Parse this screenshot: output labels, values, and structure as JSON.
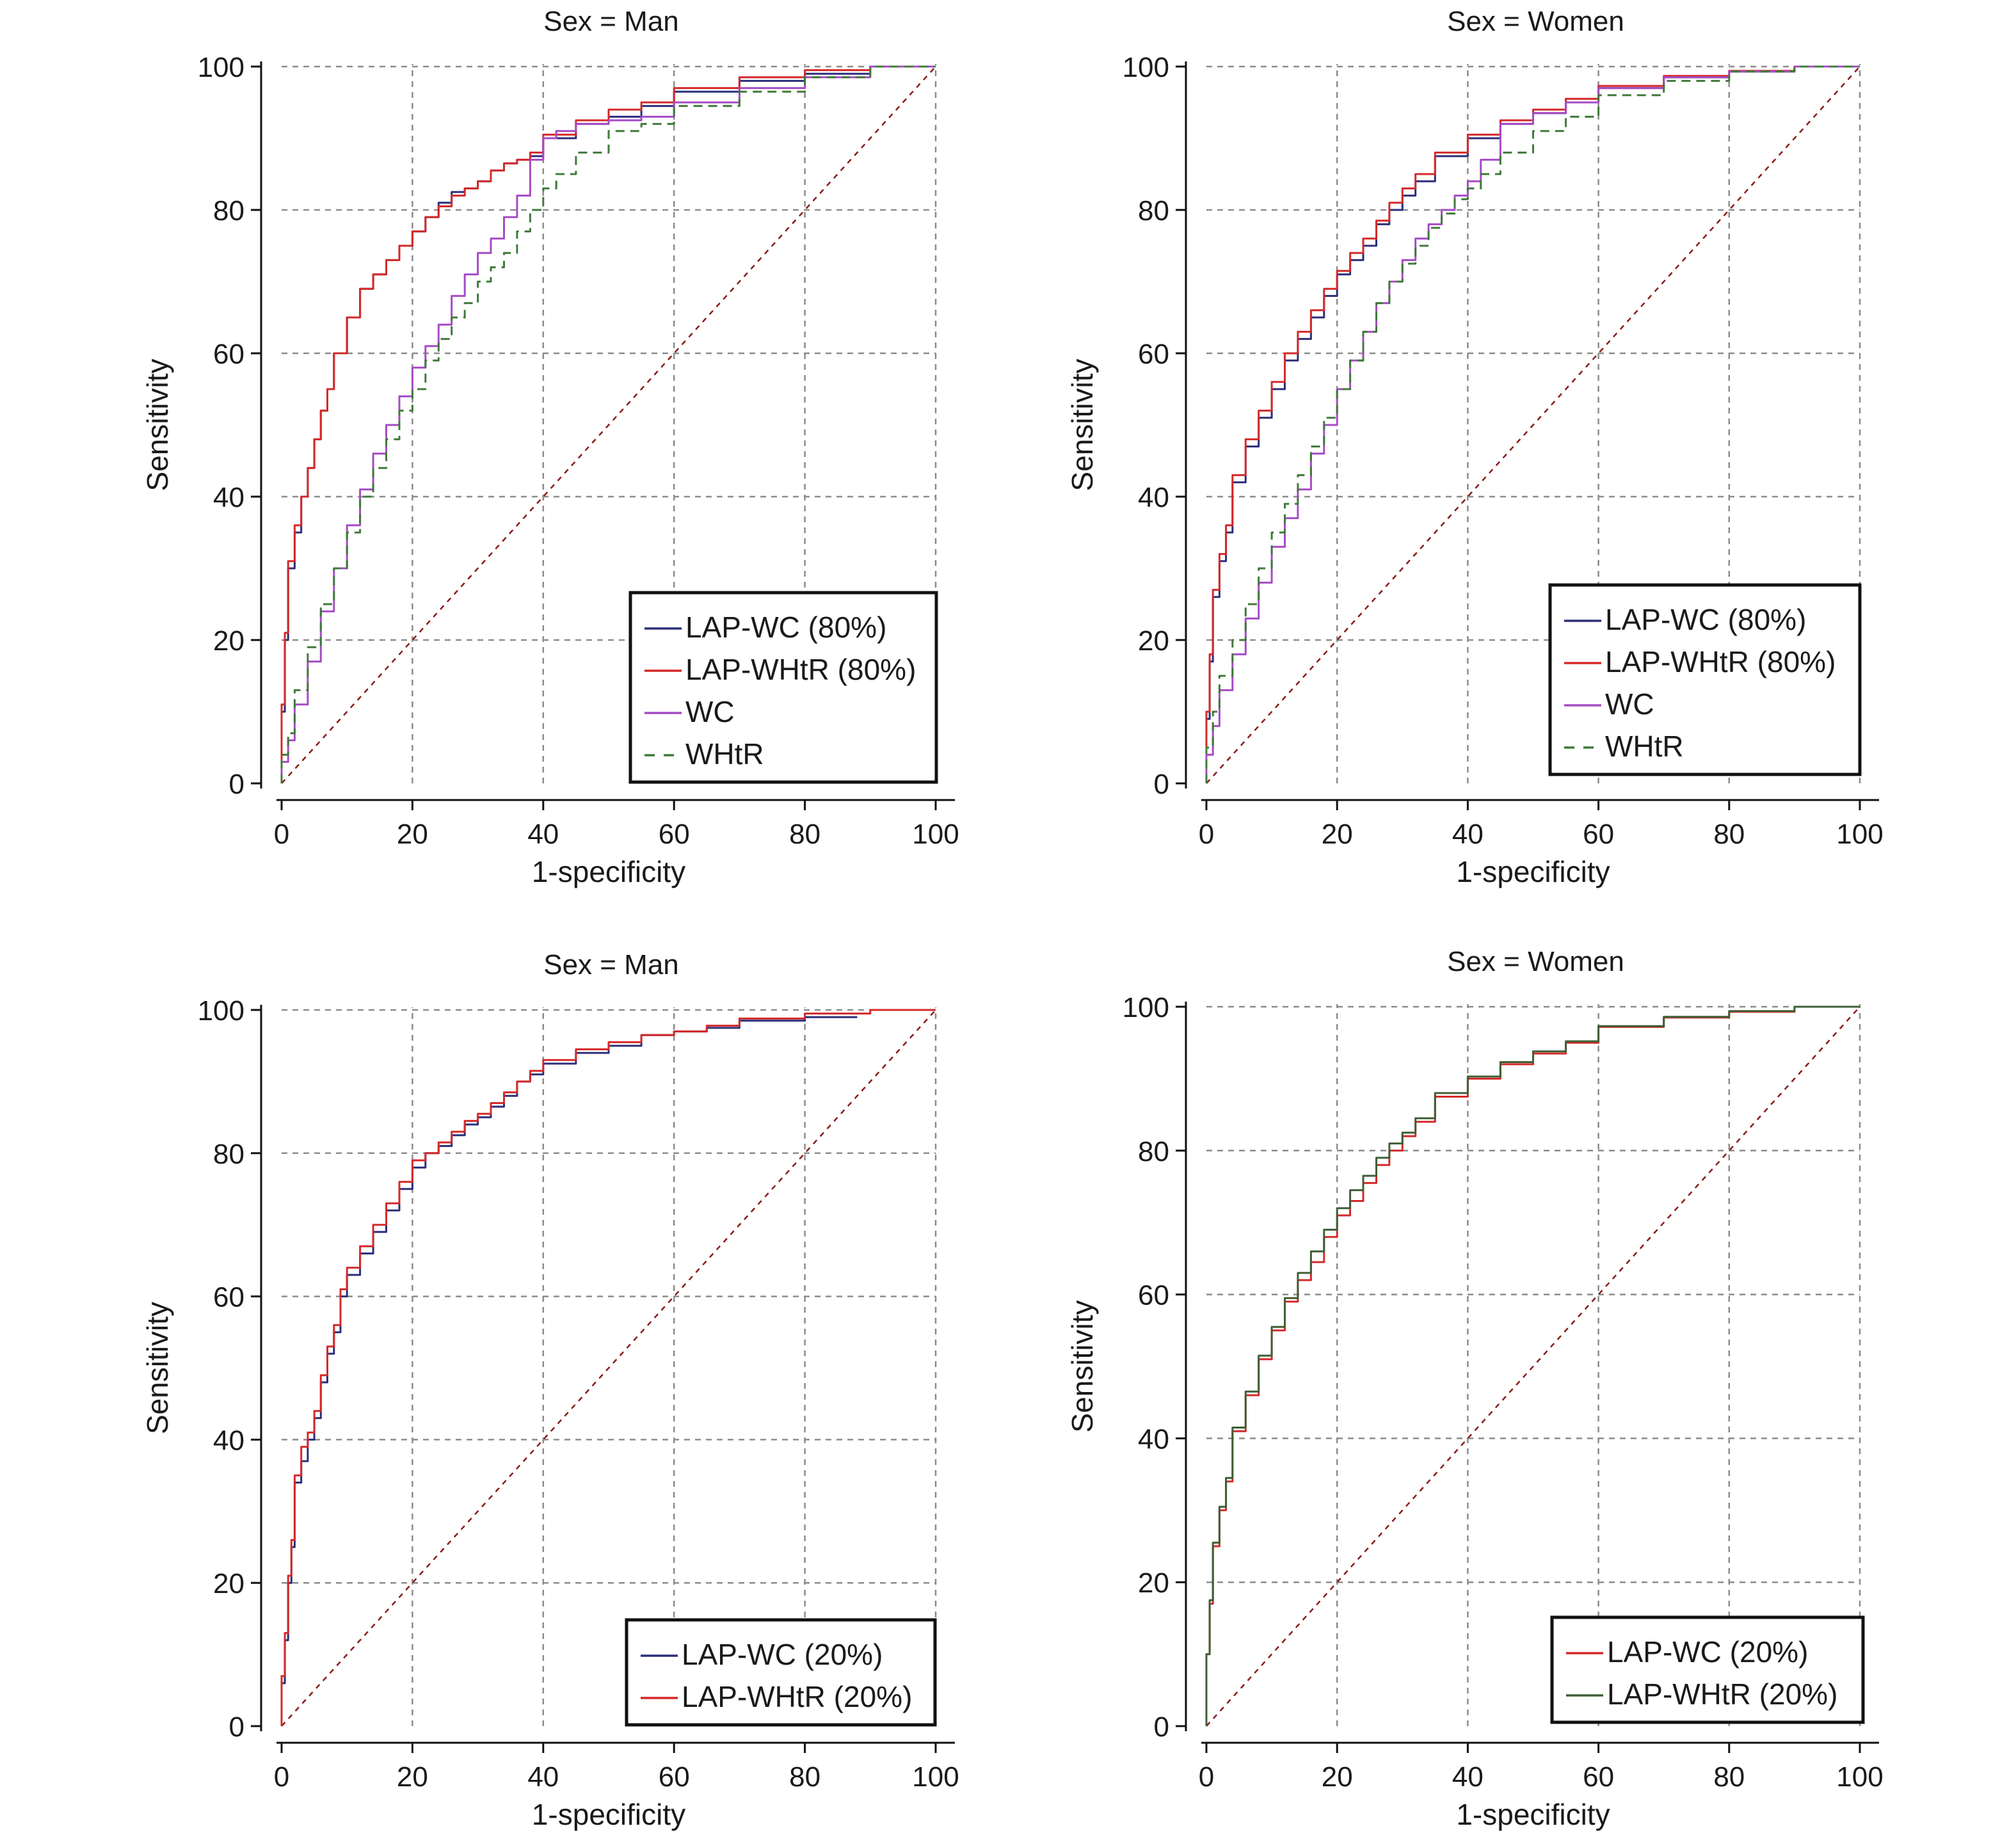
{
  "colors": {
    "grid": "#8c8c8c",
    "axis": "#111111",
    "reference": "#8b1a1a",
    "legend_border": "#111111"
  },
  "chart_data": [
    {
      "type": "line",
      "title": "Sex = Man",
      "xlabel": "1-specificity",
      "ylabel": "Sensitivity",
      "xlim": [
        0,
        100
      ],
      "ylim": [
        0,
        100
      ],
      "xticks": [
        "0",
        "20",
        "40",
        "60",
        "80",
        "100"
      ],
      "yticks": [
        "0",
        "20",
        "40",
        "60",
        "80",
        "100"
      ],
      "grid": true,
      "legend_position": "bottom-right",
      "reference_line": {
        "x": [
          0,
          100
        ],
        "y": [
          0,
          100
        ],
        "style": "dashed"
      },
      "series": [
        {
          "name": "LAP-WC (80%)",
          "color": "#2b2f7a",
          "style": "solid",
          "x": [
            0,
            0.5,
            1,
            2,
            3,
            4,
            5,
            6,
            7,
            8,
            10,
            12,
            14,
            16,
            18,
            20,
            22,
            24,
            26,
            28,
            30,
            32,
            34,
            36,
            38,
            40,
            45,
            50,
            55,
            60,
            70,
            80,
            90,
            100
          ],
          "y": [
            0,
            10,
            20,
            30,
            35,
            40,
            44,
            48,
            52,
            55,
            60,
            65,
            69,
            71,
            73,
            75,
            77,
            79,
            81,
            82.5,
            83,
            84,
            85.5,
            86.5,
            87,
            87.5,
            90,
            92,
            93,
            94.5,
            96.5,
            98,
            99,
            100
          ]
        },
        {
          "name": "LAP-WHtR (80%)",
          "color": "#d42a2a",
          "style": "solid",
          "x": [
            0,
            0.5,
            1,
            2,
            3,
            4,
            5,
            6,
            7,
            8,
            10,
            12,
            14,
            16,
            18,
            20,
            22,
            24,
            26,
            28,
            30,
            32,
            34,
            36,
            38,
            40,
            45,
            50,
            55,
            60,
            70,
            80,
            90,
            100
          ],
          "y": [
            0,
            11,
            21,
            31,
            36,
            40,
            44,
            48,
            52,
            55,
            60,
            65,
            69,
            71,
            73,
            75,
            77,
            79,
            80.5,
            82,
            83,
            84,
            85.5,
            86.5,
            87,
            88,
            90.5,
            92.5,
            94,
            95,
            97,
            98.5,
            99.5,
            100
          ]
        },
        {
          "name": "WC",
          "color": "#a64bc4",
          "style": "solid",
          "x": [
            0,
            1,
            2,
            4,
            6,
            8,
            10,
            12,
            14,
            16,
            18,
            20,
            22,
            24,
            26,
            28,
            30,
            32,
            34,
            36,
            38,
            40,
            42,
            45,
            50,
            55,
            60,
            70,
            80,
            90,
            100
          ],
          "y": [
            0,
            3,
            6,
            11,
            17,
            24,
            30,
            36,
            41,
            46,
            50,
            54,
            58,
            61,
            64,
            68,
            71,
            74,
            76,
            79,
            82,
            87,
            90,
            91,
            92,
            92.5,
            93,
            95,
            97,
            98.5,
            100
          ]
        },
        {
          "name": "WHtR",
          "color": "#3f7a3a",
          "style": "dashed",
          "x": [
            0,
            1,
            2,
            4,
            6,
            8,
            10,
            12,
            14,
            16,
            18,
            20,
            22,
            24,
            26,
            28,
            30,
            32,
            34,
            36,
            38,
            40,
            42,
            45,
            50,
            55,
            60,
            70,
            80,
            90,
            100
          ],
          "y": [
            0,
            4,
            7,
            13,
            19,
            25,
            30,
            35,
            40,
            44,
            48,
            52,
            55,
            59,
            62,
            65,
            67,
            70,
            72,
            74,
            77,
            80,
            83,
            85,
            88,
            91,
            92,
            94.5,
            96.5,
            98.5,
            100
          ]
        }
      ]
    },
    {
      "type": "line",
      "title": "Sex = Women",
      "xlabel": "1-specificity",
      "ylabel": "Sensitivity",
      "xlim": [
        0,
        100
      ],
      "ylim": [
        0,
        100
      ],
      "xticks": [
        "0",
        "20",
        "40",
        "60",
        "80",
        "100"
      ],
      "yticks": [
        "0",
        "20",
        "40",
        "60",
        "80",
        "100"
      ],
      "grid": true,
      "legend_position": "bottom-right",
      "reference_line": {
        "x": [
          0,
          100
        ],
        "y": [
          0,
          100
        ],
        "style": "dashed"
      },
      "series": [
        {
          "name": "LAP-WC (80%)",
          "color": "#2b2f7a",
          "style": "solid",
          "x": [
            0,
            0.5,
            1,
            2,
            3,
            4,
            6,
            8,
            10,
            12,
            14,
            16,
            18,
            20,
            22,
            24,
            26,
            28,
            30,
            32,
            35,
            40,
            45,
            50,
            55,
            60,
            70,
            80,
            90,
            100
          ],
          "y": [
            0,
            9,
            17,
            26,
            31,
            35,
            42,
            47,
            51,
            55,
            59,
            62,
            65,
            68,
            71,
            73,
            75,
            78,
            80,
            82,
            84,
            87.5,
            90,
            92,
            93.5,
            95,
            97,
            98.5,
            99.3,
            100
          ]
        },
        {
          "name": "LAP-WHtR (80%)",
          "color": "#d42a2a",
          "style": "solid",
          "x": [
            0,
            0.5,
            1,
            2,
            3,
            4,
            6,
            8,
            10,
            12,
            14,
            16,
            18,
            20,
            22,
            24,
            26,
            28,
            30,
            32,
            35,
            40,
            45,
            50,
            55,
            60,
            70,
            80,
            90,
            100
          ],
          "y": [
            0,
            10,
            18,
            27,
            32,
            36,
            43,
            48,
            52,
            56,
            60,
            63,
            66,
            69,
            71.5,
            74,
            76,
            78.5,
            81,
            83,
            85,
            88,
            90.5,
            92.5,
            94,
            95.5,
            97.3,
            98.7,
            99.4,
            100
          ]
        },
        {
          "name": "WC",
          "color": "#a64bc4",
          "style": "solid",
          "x": [
            0,
            1,
            2,
            4,
            6,
            8,
            10,
            12,
            14,
            16,
            18,
            20,
            22,
            24,
            26,
            28,
            30,
            32,
            34,
            36,
            38,
            40,
            42,
            45,
            50,
            55,
            60,
            70,
            80,
            90,
            100
          ],
          "y": [
            0,
            4,
            8,
            13,
            18,
            23,
            28,
            33,
            37,
            41,
            46,
            50,
            55,
            59,
            63,
            67,
            70,
            73,
            76,
            78,
            80,
            82,
            84,
            87,
            92,
            93.5,
            95,
            97,
            98.5,
            99.3,
            100
          ]
        },
        {
          "name": "WHtR",
          "color": "#3f7a3a",
          "style": "dashed",
          "x": [
            0,
            1,
            2,
            4,
            6,
            8,
            10,
            12,
            14,
            16,
            18,
            20,
            22,
            24,
            26,
            28,
            30,
            32,
            34,
            36,
            38,
            40,
            42,
            45,
            50,
            55,
            60,
            70,
            80,
            90,
            100
          ],
          "y": [
            0,
            5,
            10,
            15,
            20,
            25,
            30,
            35,
            39,
            43,
            47,
            51,
            55,
            59,
            63,
            67,
            70,
            72.5,
            75,
            77.5,
            79.5,
            81.5,
            83,
            85,
            88,
            91,
            93,
            96,
            98,
            99.3,
            100
          ]
        }
      ]
    },
    {
      "type": "line",
      "title": "Sex = Man",
      "xlabel": "1-specificity",
      "ylabel": "Sensitivity",
      "xlim": [
        0,
        100
      ],
      "ylim": [
        0,
        100
      ],
      "xticks": [
        "0",
        "20",
        "40",
        "60",
        "80",
        "100"
      ],
      "yticks": [
        "0",
        "20",
        "40",
        "60",
        "80",
        "100"
      ],
      "grid": true,
      "legend_position": "bottom-right",
      "reference_line": {
        "x": [
          0,
          100
        ],
        "y": [
          0,
          100
        ],
        "style": "dashed"
      },
      "series": [
        {
          "name": "LAP-WC (20%)",
          "color": "#2b2f7a",
          "style": "solid",
          "x": [
            0,
            0.5,
            1,
            1.5,
            2,
            3,
            4,
            5,
            6,
            7,
            8,
            9,
            10,
            12,
            14,
            16,
            18,
            20,
            22,
            24,
            26,
            28,
            30,
            32,
            34,
            36,
            38,
            40,
            45,
            50,
            55,
            60,
            65,
            70,
            80,
            88
          ],
          "y": [
            0,
            6,
            12,
            20,
            25,
            34,
            37,
            40,
            43,
            48,
            52,
            55,
            60,
            63,
            66,
            69,
            72,
            75,
            78,
            80,
            81,
            82.5,
            84,
            85,
            86.5,
            88,
            90,
            91,
            92.5,
            94,
            95,
            96.5,
            97,
            97.5,
            98.5,
            99
          ]
        },
        {
          "name": "LAP-WHtR (20%)",
          "color": "#d42a2a",
          "style": "solid",
          "x": [
            0,
            0.5,
            1,
            1.5,
            2,
            3,
            4,
            5,
            6,
            7,
            8,
            9,
            10,
            12,
            14,
            16,
            18,
            20,
            22,
            24,
            26,
            28,
            30,
            32,
            34,
            36,
            38,
            40,
            45,
            50,
            55,
            60,
            65,
            70,
            80,
            90,
            100
          ],
          "y": [
            0,
            7,
            13,
            21,
            26,
            35,
            39,
            41,
            44,
            49,
            53,
            56,
            61,
            64,
            67,
            70,
            73,
            76,
            79,
            80,
            81.5,
            83,
            84.5,
            85.5,
            87,
            88.5,
            90,
            91.5,
            93,
            94.5,
            95.5,
            96.5,
            97,
            97.8,
            98.8,
            99.5,
            100
          ]
        }
      ]
    },
    {
      "type": "line",
      "title": "Sex = Women",
      "xlabel": "1-specificity",
      "ylabel": "Sensitivity",
      "xlim": [
        0,
        100
      ],
      "ylim": [
        0,
        100
      ],
      "xticks": [
        "0",
        "20",
        "40",
        "60",
        "80",
        "100"
      ],
      "yticks": [
        "0",
        "20",
        "40",
        "60",
        "80",
        "100"
      ],
      "grid": true,
      "legend_position": "bottom-right",
      "reference_line": {
        "x": [
          0,
          100
        ],
        "y": [
          0,
          100
        ],
        "style": "dashed"
      },
      "series": [
        {
          "name": "LAP-WC (20%)",
          "color": "#d42a2a",
          "style": "solid",
          "x": [
            0,
            0.5,
            1,
            2,
            3,
            4,
            6,
            8,
            10,
            12,
            14,
            16,
            18,
            20,
            22,
            24,
            26,
            28,
            30,
            32,
            35,
            40,
            45,
            50,
            55,
            60,
            70,
            80,
            90,
            100
          ],
          "y": [
            0,
            10,
            17,
            25,
            30,
            34,
            41,
            46,
            51,
            55,
            59,
            62,
            64.5,
            68,
            71,
            73,
            75.5,
            78,
            80,
            82,
            84,
            87.5,
            90,
            92,
            93.5,
            95,
            97.2,
            98.5,
            99.3,
            100
          ]
        },
        {
          "name": "LAP-WHtR (20%)",
          "color": "#3f5f36",
          "style": "solid",
          "x": [
            0,
            0.5,
            1,
            2,
            3,
            4,
            6,
            8,
            10,
            12,
            14,
            16,
            18,
            20,
            22,
            24,
            26,
            28,
            30,
            32,
            35,
            40,
            45,
            50,
            55,
            60,
            70,
            80,
            90,
            100
          ],
          "y": [
            0,
            10,
            17.5,
            25.5,
            30.5,
            34.5,
            41.5,
            46.5,
            51.5,
            55.5,
            59.5,
            63,
            66,
            69,
            72,
            74.5,
            76.5,
            79,
            81,
            82.5,
            84.5,
            88,
            90.3,
            92.3,
            93.8,
            95.2,
            97.3,
            98.6,
            99.4,
            100
          ]
        }
      ]
    }
  ]
}
